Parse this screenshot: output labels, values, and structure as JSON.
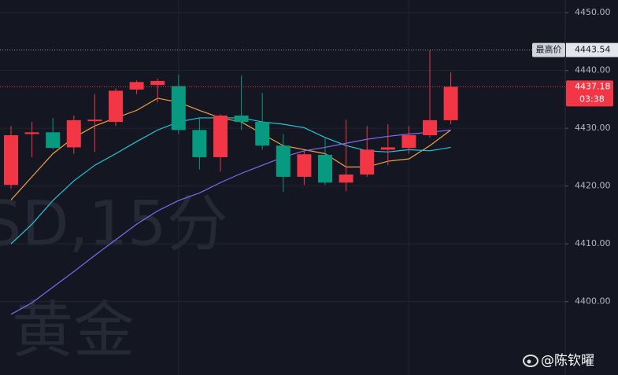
{
  "chart_data": {
    "type": "candlestick",
    "watermark": [
      "SD,15分",
      "黄金"
    ],
    "credit": "@陈钦曜",
    "open": [
      4420.2,
      4429.0,
      4429.3,
      4426.7,
      4431.3,
      4431.1,
      4436.7,
      4437.5,
      4437.3,
      4429.7,
      4425.0,
      4432.2,
      4431.1,
      4427.0,
      4421.6,
      4425.4,
      4420.6,
      4422.0,
      4426.3,
      4426.6,
      4428.8,
      4431.4
    ],
    "high": [
      4430.4,
      4431.1,
      4431.8,
      4432.2,
      4435.9,
      4436.9,
      4438.3,
      4438.6,
      4439.3,
      4431.8,
      4432.4,
      4439.1,
      4436.1,
      4429.0,
      4426.1,
      4428.4,
      4431.5,
      4430.4,
      4430.7,
      4430.4,
      4443.54,
      4439.7
    ],
    "low": [
      4419.5,
      4425.0,
      4426.3,
      4425.6,
      4425.9,
      4430.4,
      4435.9,
      4434.5,
      4429.0,
      4422.9,
      4422.5,
      4429.7,
      4426.3,
      4419.0,
      4420.2,
      4420.2,
      4419.1,
      4421.6,
      4423.6,
      4425.6,
      4428.4,
      4430.7
    ],
    "close": [
      4428.8,
      4429.3,
      4426.6,
      4431.4,
      4431.5,
      4436.5,
      4438.0,
      4438.2,
      4429.7,
      4425.0,
      4432.2,
      4431.1,
      4427.0,
      4421.6,
      4425.5,
      4420.6,
      4422.0,
      4426.3,
      4426.7,
      4428.8,
      4431.4,
      4437.18
    ],
    "up_color": "#f23645",
    "down_color": "#089981",
    "moving_averages": [
      {
        "color": "#f0a040",
        "values": [
          4417.6,
          4421.6,
          4425.6,
          4428.4,
          4430.4,
          4431.8,
          4433.1,
          4435.2,
          4434.5,
          4433.1,
          4431.8,
          4431.1,
          4429.0,
          4427.0,
          4426.3,
          4425.6,
          4423.3,
          4423.3,
          4424.3,
          4424.7,
          4427.0,
          4429.7
        ]
      },
      {
        "color": "#26c6da",
        "values": [
          4410.0,
          4413.4,
          4417.5,
          4420.9,
          4423.6,
          4425.6,
          4427.7,
          4429.7,
          4431.1,
          4431.8,
          4431.8,
          4431.8,
          4431.1,
          4430.7,
          4430.1,
          4428.4,
          4427.0,
          4426.1,
          4425.9,
          4426.3,
          4426.1,
          4426.7
        ]
      },
      {
        "color": "#7e6cf0",
        "values": [
          4397.8,
          4399.8,
          4402.5,
          4405.2,
          4408.0,
          4410.7,
          4413.4,
          4415.7,
          4417.5,
          4418.8,
          4420.6,
          4422.2,
          4423.6,
          4425.0,
          4426.1,
          4426.7,
          4427.4,
          4428.1,
          4428.6,
          4429.0,
          4429.3,
          4429.7
        ]
      }
    ],
    "high_price": {
      "label": "最高价",
      "value": 4443.54
    },
    "last_price": {
      "value": 4437.18,
      "countdown": "03:38"
    },
    "ylim": [
      4387.3,
      4452.2
    ],
    "yticks": [
      {
        "value": 4450,
        "label": "4450.00"
      },
      {
        "value": 4440,
        "label": "4440.00"
      },
      {
        "value": 4430,
        "label": "4430.00"
      },
      {
        "value": 4420,
        "label": "4420.00"
      },
      {
        "value": 4410,
        "label": "4410.00"
      },
      {
        "value": 4400,
        "label": "4400.00"
      }
    ],
    "grid": true
  }
}
